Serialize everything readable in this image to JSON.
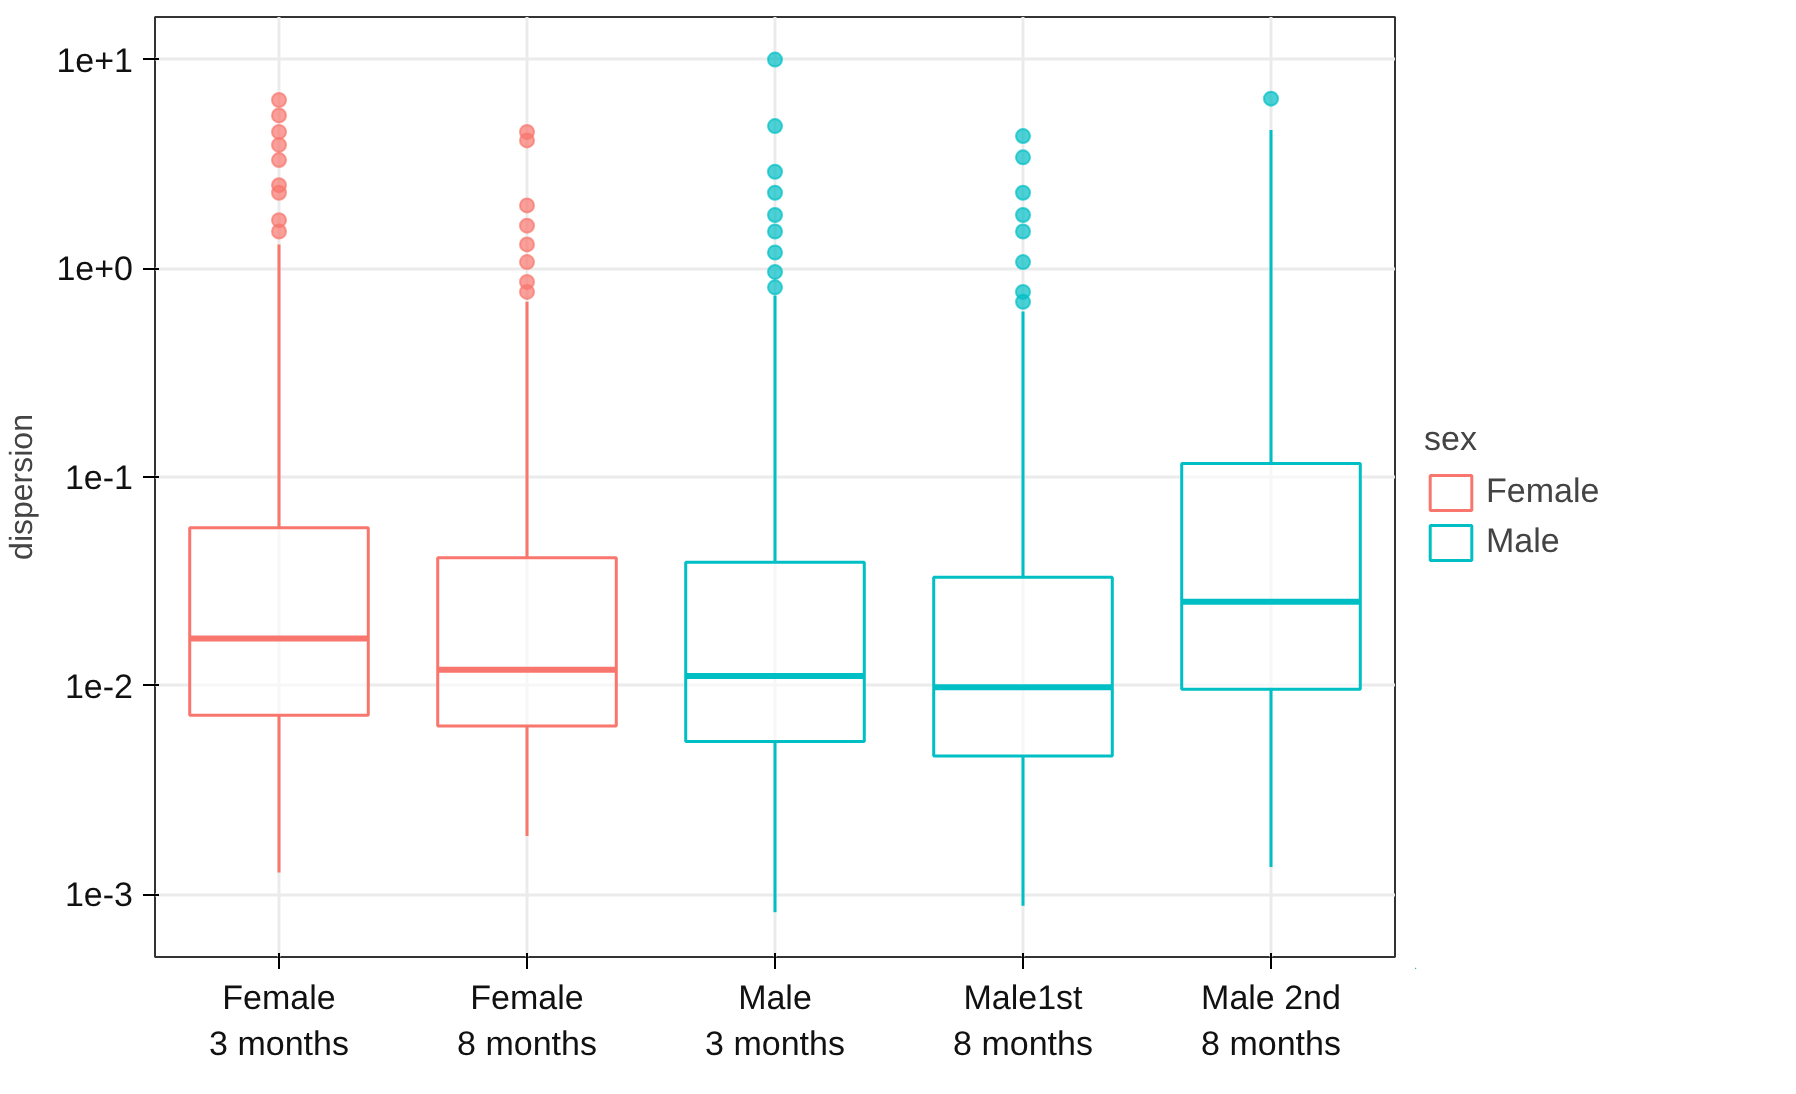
{
  "chart_data": {
    "type": "box",
    "ylabel": "dispersion",
    "legend_title": "sex",
    "legend": "right",
    "log": "y",
    "grid": true,
    "categories": [
      "Female\n3 months",
      "Female\n8 months",
      "Male\n3 months",
      "Male1st\n8 months",
      "Male 2nd\n8 months"
    ],
    "ylim": [
      0.0005,
      16
    ],
    "yticks": [
      {
        "value": 0.001,
        "label": "1e-3"
      },
      {
        "value": 0.01,
        "label": "1e-2"
      },
      {
        "value": 0.1,
        "label": "1e-1"
      },
      {
        "value": 1,
        "label": "1e+0"
      },
      {
        "value": 10,
        "label": "1e+1"
      }
    ],
    "series": [
      {
        "name": "Female",
        "color": "#f8766d",
        "boxes": [
          {
            "low": 0.00127,
            "q1": 0.0072,
            "median": 0.0168,
            "q3": 0.057,
            "high": 1.3,
            "outliers": [
              6.4,
              5.4,
              4.5,
              3.9,
              3.3,
              2.5,
              2.3,
              1.7,
              1.5
            ]
          },
          {
            "low": 0.0019,
            "q1": 0.0064,
            "median": 0.0119,
            "q3": 0.041,
            "high": 0.69,
            "outliers": [
              4.5,
              4.1,
              2.0,
              1.6,
              1.3,
              1.07,
              0.86,
              0.77
            ]
          },
          null,
          null,
          null
        ]
      },
      {
        "name": "Male",
        "color": "#00bfc4",
        "boxes": [
          null,
          null,
          {
            "low": 0.00082,
            "q1": 0.0054,
            "median": 0.0111,
            "q3": 0.039,
            "high": 0.74,
            "outliers": [
              10.0,
              4.8,
              2.9,
              2.3,
              1.8,
              1.5,
              1.19,
              0.96,
              0.81
            ]
          },
          {
            "low": 0.00088,
            "q1": 0.0046,
            "median": 0.0098,
            "q3": 0.033,
            "high": 0.62,
            "outliers": [
              4.3,
              3.4,
              2.3,
              1.8,
              1.5,
              1.07,
              0.77,
              0.69
            ]
          },
          {
            "low": 0.00135,
            "q1": 0.0096,
            "median": 0.0252,
            "q3": 0.116,
            "high": 4.6,
            "outliers": [
              6.5
            ]
          }
        ]
      }
    ]
  }
}
